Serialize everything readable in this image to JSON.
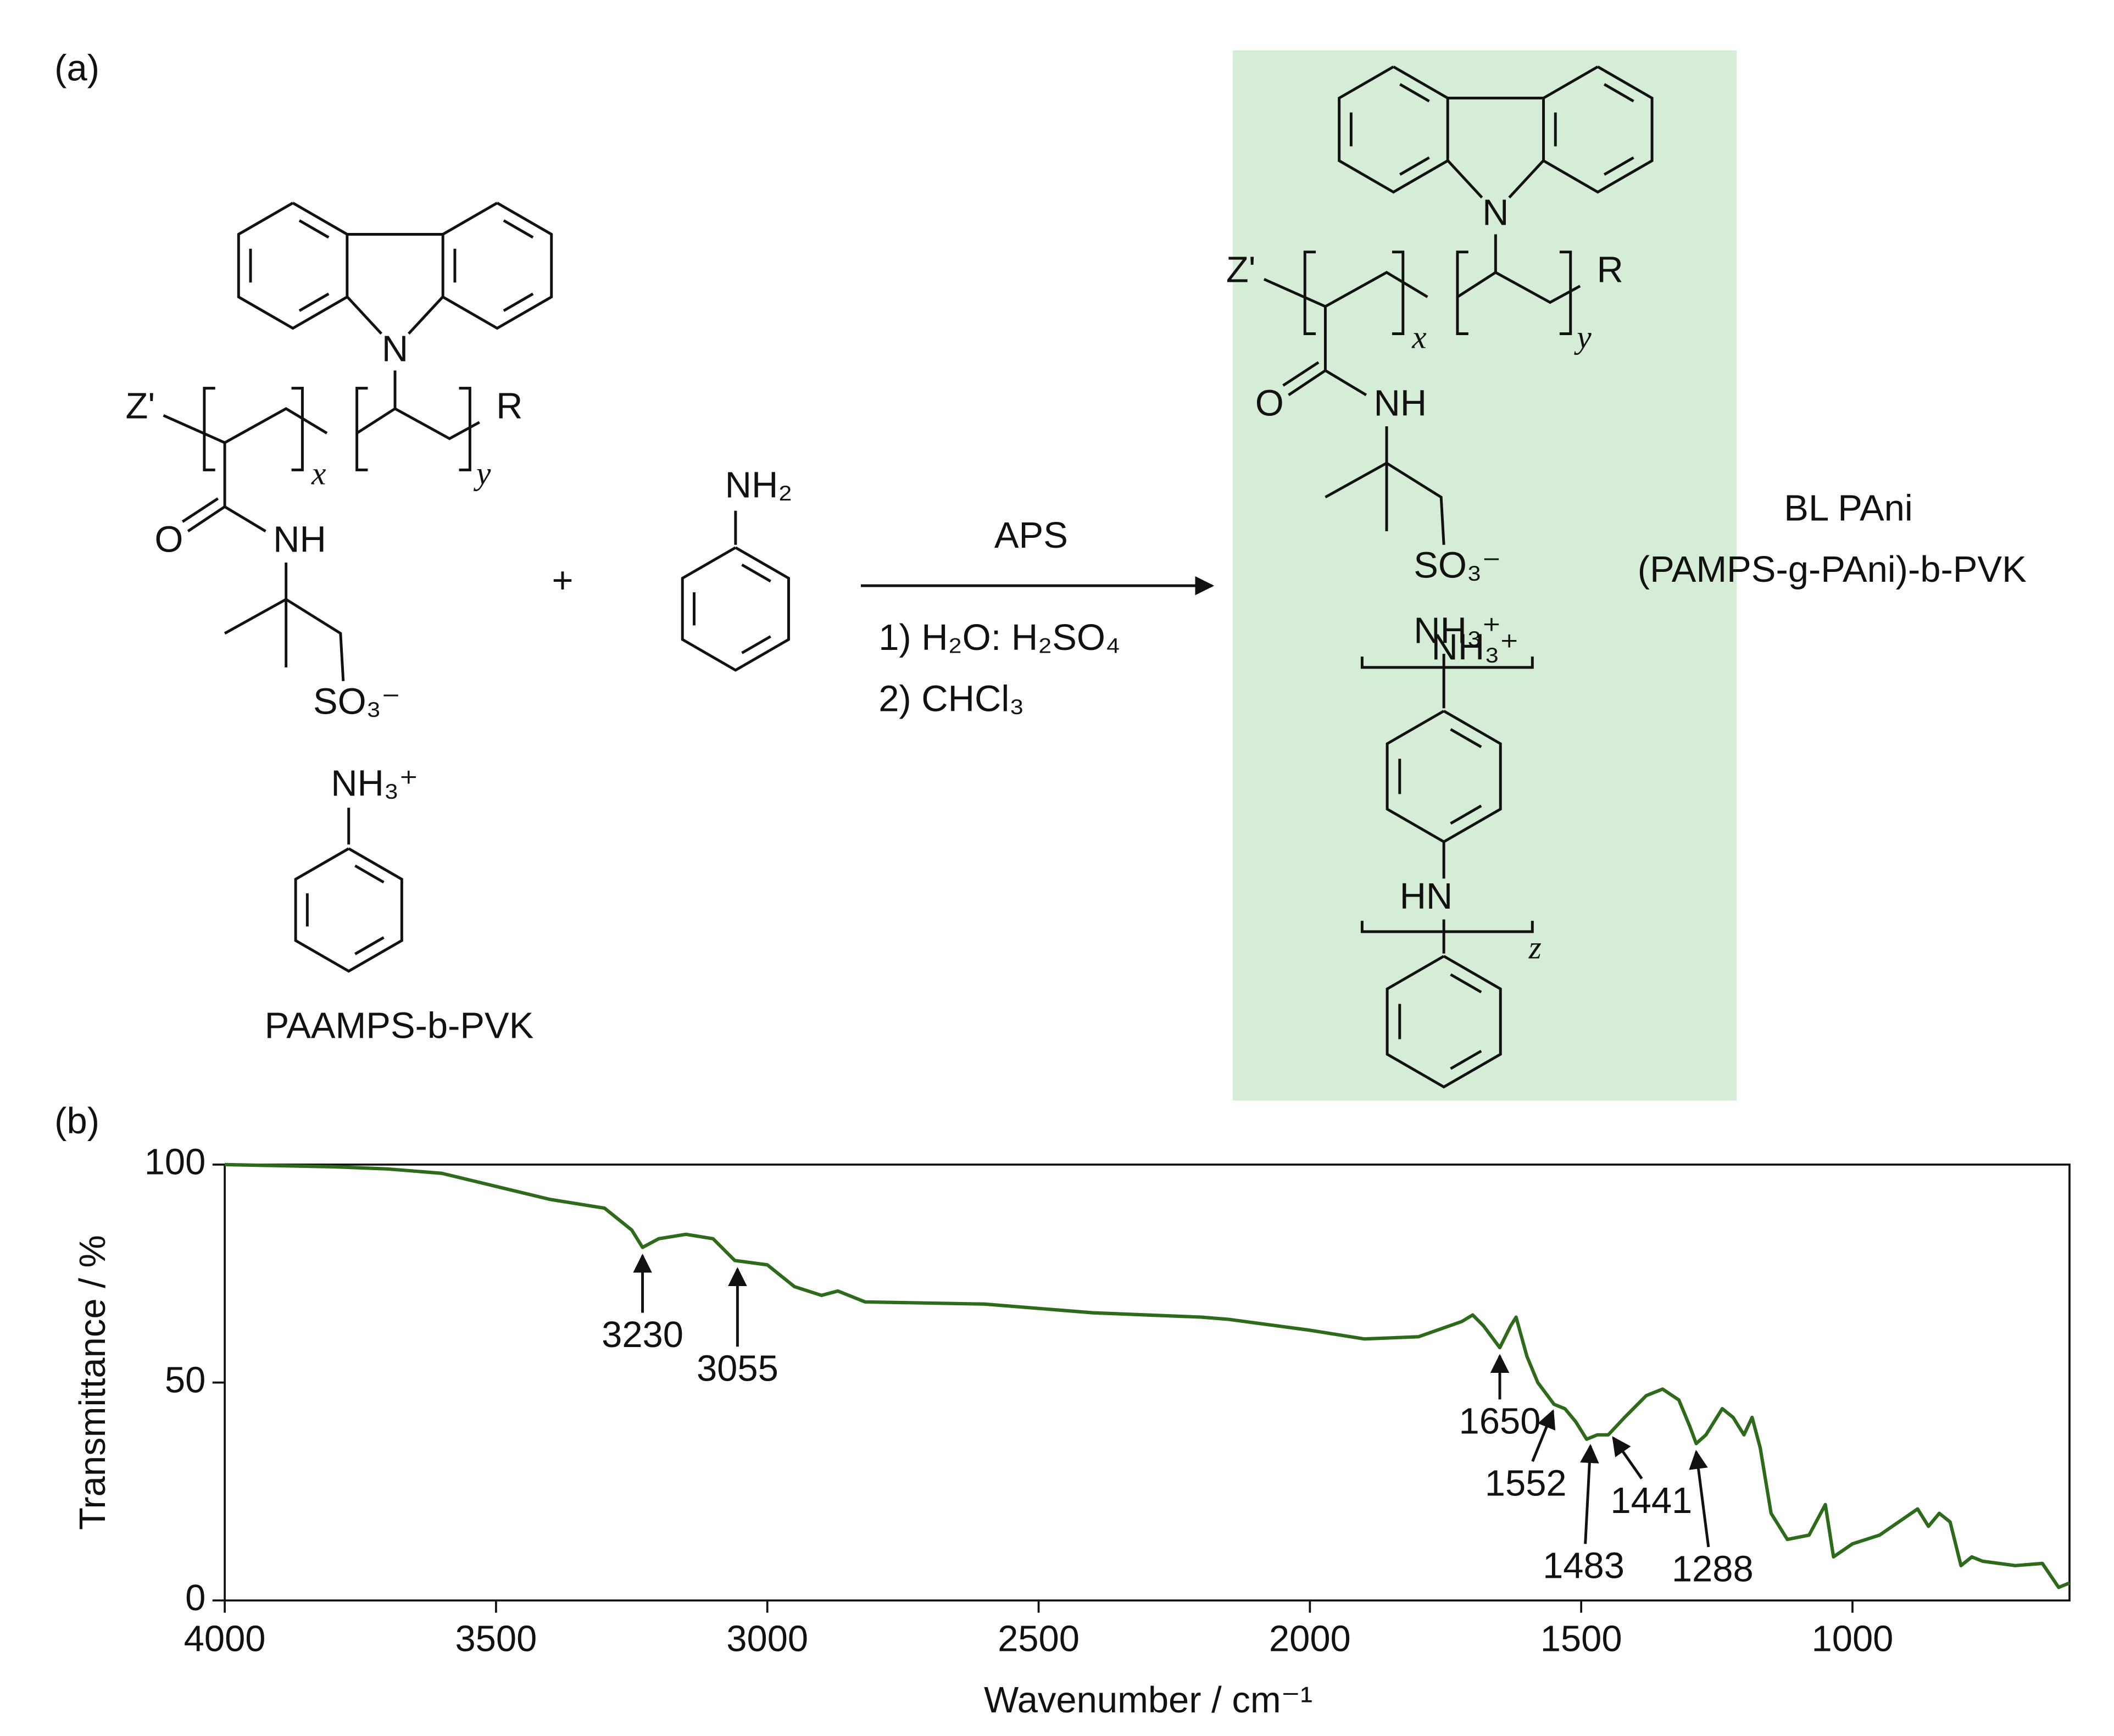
{
  "panel_a": {
    "label": "(a)",
    "reactant": {
      "name": "PAAMPS-b-PVK",
      "n": "N",
      "z": "Z'",
      "r": "R",
      "o": "O",
      "nh": "NH",
      "x": "x",
      "y": "y",
      "so3": "SO₃⁻",
      "nh3": "NH₃⁺"
    },
    "plus": "+",
    "monomer": "NH₂",
    "reagent": "APS",
    "step1": "1) H₂O: H₂SO₄",
    "step2": "2) CHCl₃",
    "product": {
      "name_line1": "BL PAni",
      "name_line2": "(PAMPS-g-PAni)-b-PVK",
      "n": "N",
      "z": "Z'",
      "r": "R",
      "o": "O",
      "nh": "NH",
      "x": "x",
      "y": "y",
      "so3": "SO₃⁻",
      "nh3": "NH₃⁺",
      "hn": "HN",
      "z_sub": "z"
    }
  },
  "panel_b": {
    "label": "(b)"
  },
  "chart_data": {
    "type": "line",
    "xlabel": "Wavenumber  / cm⁻¹",
    "ylabel": "Transmittance / %",
    "xlim": [
      4000,
      600
    ],
    "ylim": [
      0,
      100
    ],
    "xticks": [
      4000,
      3500,
      3000,
      2500,
      2000,
      1500,
      1000
    ],
    "yticks": [
      0,
      50,
      100
    ],
    "x": [
      4000,
      3800,
      3700,
      3600,
      3500,
      3400,
      3300,
      3250,
      3230,
      3200,
      3150,
      3100,
      3060,
      3000,
      2950,
      2900,
      2870,
      2820,
      2600,
      2400,
      2200,
      2150,
      2000,
      1900,
      1800,
      1720,
      1700,
      1680,
      1650,
      1630,
      1620,
      1600,
      1580,
      1550,
      1530,
      1510,
      1490,
      1470,
      1450,
      1420,
      1380,
      1350,
      1320,
      1300,
      1288,
      1270,
      1240,
      1220,
      1200,
      1185,
      1170,
      1150,
      1120,
      1080,
      1050,
      1035,
      1000,
      950,
      880,
      860,
      840,
      820,
      800,
      780,
      760,
      700,
      650,
      620,
      600
    ],
    "series": [
      {
        "name": "BL PAni",
        "color": "#2d6b1a",
        "values": [
          100,
          99.5,
          99,
          98,
          95,
          92,
          90,
          85,
          81,
          83,
          84,
          83,
          78,
          77,
          72,
          70,
          71,
          68.5,
          68,
          66,
          65,
          64.5,
          62,
          60,
          60.5,
          64,
          65.5,
          63,
          58,
          63,
          65,
          56,
          50,
          45,
          44,
          41,
          37,
          38,
          38,
          42,
          47,
          48.5,
          46,
          40,
          36,
          38,
          44,
          42,
          38,
          42,
          35,
          20,
          14,
          15,
          22,
          10,
          13,
          15,
          21,
          17,
          20,
          18,
          8,
          10,
          9,
          8,
          8.5,
          3,
          4
        ]
      }
    ],
    "annotations": [
      3230,
      3055,
      1650,
      1552,
      1483,
      1441,
      1288
    ]
  }
}
